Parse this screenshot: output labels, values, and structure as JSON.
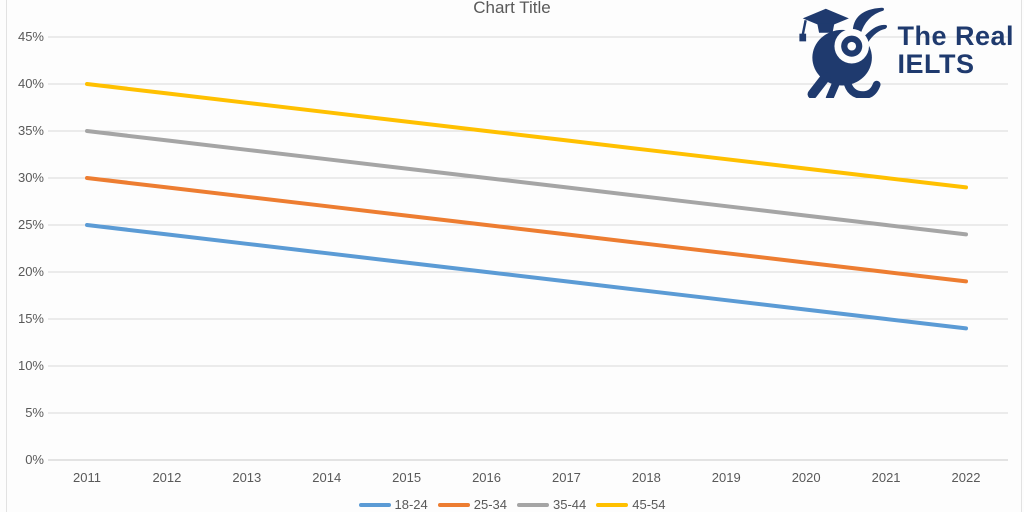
{
  "chart_data": {
    "type": "line",
    "title": "Chart Title",
    "categories": [
      "2011",
      "2012",
      "2013",
      "2014",
      "2015",
      "2016",
      "2017",
      "2018",
      "2019",
      "2020",
      "2021",
      "2022"
    ],
    "series": [
      {
        "name": "18-24",
        "color": "#5B9BD5",
        "values": [
          25,
          24,
          23,
          22,
          21,
          20,
          19,
          18,
          17,
          16,
          15,
          14
        ]
      },
      {
        "name": "25-34",
        "color": "#ED7D31",
        "values": [
          30,
          29,
          28,
          27,
          26,
          25,
          24,
          23,
          22,
          21,
          20,
          19
        ]
      },
      {
        "name": "35-44",
        "color": "#A5A5A5",
        "values": [
          35,
          34,
          33,
          32,
          31,
          30,
          29,
          28,
          27,
          26,
          25,
          24
        ]
      },
      {
        "name": "45-54",
        "color": "#FFC000",
        "values": [
          40,
          39,
          38,
          37,
          36,
          35,
          34,
          33,
          32,
          31,
          30,
          29
        ]
      }
    ],
    "y_ticks": [
      "0%",
      "5%",
      "10%",
      "15%",
      "20%",
      "25%",
      "30%",
      "35%",
      "40%",
      "45%"
    ],
    "y_axis": {
      "min": 0,
      "max": 45,
      "step": 5,
      "format": "percent"
    },
    "xlabel": "",
    "ylabel": "",
    "grid": "horizontal",
    "legend_position": "bottom"
  },
  "colors": {
    "grid": "#d9d9d9",
    "axis_line": "#c9c9c9",
    "text": "#595959",
    "background": "#fdfdfd",
    "logo_navy": "#1f3a6e"
  },
  "logo": {
    "icon": "graduate-mascot-icon",
    "line1": "The Real",
    "line2": "IELTS"
  }
}
